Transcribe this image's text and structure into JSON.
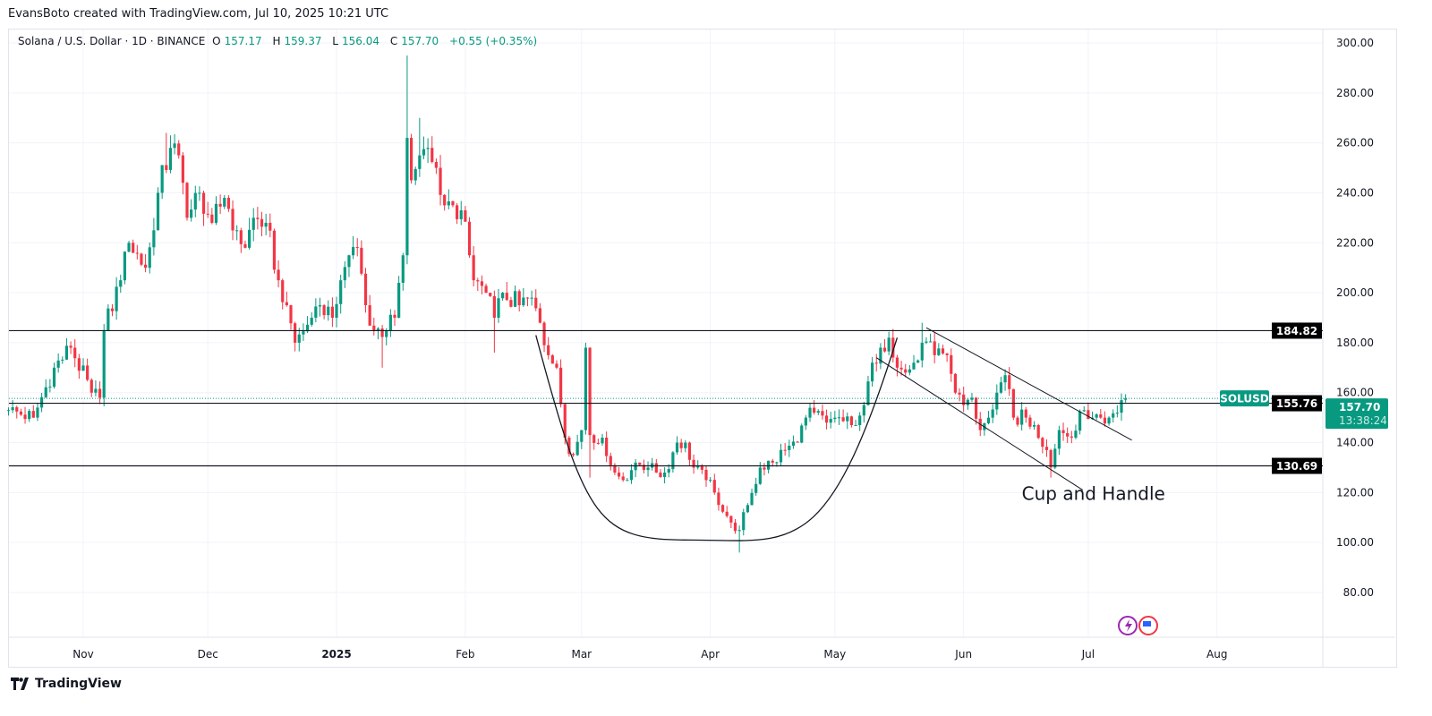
{
  "credit": "EvansBoto created with TradingView.com, Jul 10, 2025 10:21 UTC",
  "legend": {
    "symbol": "Solana / U.S. Dollar · 1D · BINANCE",
    "o_label": "O",
    "o": "157.17",
    "h_label": "H",
    "h": "159.37",
    "l_label": "L",
    "l": "156.04",
    "c_label": "C",
    "c": "157.70",
    "change": "+0.55 (+0.35%)"
  },
  "footer": {
    "brand": "TradingView"
  },
  "colors": {
    "up": "#089981",
    "down": "#f23645",
    "line": "#131722"
  },
  "chart_data": {
    "type": "candlestick",
    "title": "Solana / U.S. Dollar · 1D · BINANCE",
    "start_date": "2024-10-14",
    "ylim": [
      62,
      305
    ],
    "y_ticks": [
      "300.00",
      "280.00",
      "260.00",
      "240.00",
      "220.00",
      "200.00",
      "180.00",
      "160.00",
      "140.00",
      "120.00",
      "100.00",
      "80.00"
    ],
    "x_ticks": [
      {
        "label": "Nov",
        "day": 18
      },
      {
        "label": "Dec",
        "day": 48
      },
      {
        "label": "2025",
        "day": 79,
        "bold": true
      },
      {
        "label": "Feb",
        "day": 110
      },
      {
        "label": "Mar",
        "day": 138
      },
      {
        "label": "Apr",
        "day": 169
      },
      {
        "label": "May",
        "day": 199
      },
      {
        "label": "Jun",
        "day": 230
      },
      {
        "label": "Jul",
        "day": 260
      },
      {
        "label": "Aug",
        "day": 291
      }
    ],
    "close_anchors": [
      [
        0,
        153
      ],
      [
        6,
        150
      ],
      [
        11,
        170
      ],
      [
        15,
        178
      ],
      [
        20,
        160
      ],
      [
        22,
        158
      ],
      [
        23,
        185
      ],
      [
        27,
        205
      ],
      [
        29,
        220
      ],
      [
        33,
        210
      ],
      [
        35,
        225
      ],
      [
        36,
        240
      ],
      [
        39,
        258
      ],
      [
        41,
        255
      ],
      [
        43,
        230
      ],
      [
        46,
        240
      ],
      [
        49,
        228
      ],
      [
        52,
        238
      ],
      [
        55,
        225
      ],
      [
        57,
        218
      ],
      [
        59,
        230
      ],
      [
        62,
        228
      ],
      [
        65,
        205
      ],
      [
        67,
        195
      ],
      [
        69,
        180
      ],
      [
        73,
        190
      ],
      [
        75,
        195
      ],
      [
        78,
        190
      ],
      [
        80,
        205
      ],
      [
        82,
        215
      ],
      [
        84,
        218
      ],
      [
        86,
        195
      ],
      [
        88,
        185
      ],
      [
        91,
        185
      ],
      [
        93,
        190
      ],
      [
        95,
        215
      ],
      [
        96,
        262
      ],
      [
        97,
        245
      ],
      [
        99,
        255
      ],
      [
        101,
        258
      ],
      [
        103,
        250
      ],
      [
        105,
        235
      ],
      [
        107,
        235
      ],
      [
        109,
        233
      ],
      [
        111,
        215
      ],
      [
        112,
        205
      ],
      [
        115,
        200
      ],
      [
        117,
        190
      ],
      [
        119,
        200
      ],
      [
        123,
        195
      ],
      [
        126,
        198
      ],
      [
        128,
        188
      ],
      [
        130,
        175
      ],
      [
        132,
        170
      ],
      [
        134,
        142
      ],
      [
        136,
        135
      ],
      [
        138,
        145
      ],
      [
        139,
        178
      ],
      [
        140,
        143
      ],
      [
        143,
        142
      ],
      [
        146,
        128
      ],
      [
        148,
        125
      ],
      [
        151,
        132
      ],
      [
        154,
        130
      ],
      [
        156,
        128
      ],
      [
        158,
        128
      ],
      [
        161,
        140
      ],
      [
        163,
        140
      ],
      [
        165,
        130
      ],
      [
        168,
        125
      ],
      [
        170,
        120
      ],
      [
        174,
        108
      ],
      [
        176,
        105
      ],
      [
        178,
        115
      ],
      [
        181,
        130
      ],
      [
        184,
        132
      ],
      [
        187,
        137
      ],
      [
        190,
        140
      ],
      [
        192,
        150
      ],
      [
        194,
        152
      ],
      [
        197,
        148
      ],
      [
        199,
        150
      ],
      [
        203,
        147
      ],
      [
        206,
        155
      ],
      [
        208,
        172
      ],
      [
        210,
        178
      ],
      [
        212,
        182
      ],
      [
        214,
        170
      ],
      [
        216,
        168
      ],
      [
        218,
        172
      ],
      [
        220,
        180
      ],
      [
        223,
        175
      ],
      [
        226,
        175
      ],
      [
        228,
        160
      ],
      [
        230,
        155
      ],
      [
        232,
        158
      ],
      [
        234,
        145
      ],
      [
        236,
        150
      ],
      [
        238,
        160
      ],
      [
        240,
        167
      ],
      [
        242,
        150
      ],
      [
        245,
        150
      ],
      [
        247,
        147
      ],
      [
        250,
        137
      ],
      [
        251,
        130
      ],
      [
        253,
        145
      ],
      [
        256,
        142
      ],
      [
        259,
        153
      ],
      [
        261,
        150
      ],
      [
        263,
        150
      ],
      [
        265,
        150
      ],
      [
        267,
        152
      ],
      [
        268,
        157
      ],
      [
        269,
        157.7
      ]
    ],
    "extra_highs": [
      [
        96,
        295
      ],
      [
        38,
        264
      ],
      [
        99,
        270
      ],
      [
        139,
        180
      ],
      [
        220,
        188
      ]
    ],
    "extra_lows": [
      [
        117,
        176
      ],
      [
        90,
        170
      ],
      [
        176,
        96
      ],
      [
        251,
        126
      ],
      [
        140,
        126
      ]
    ],
    "horizontal_levels": [
      {
        "price": 184.82,
        "label": "184.82"
      },
      {
        "price": 155.76,
        "label": "155.76"
      },
      {
        "price": 130.69,
        "label": "130.69"
      }
    ],
    "last_price": {
      "symbol": "SOLUSD",
      "price": 157.7,
      "label": "157.70",
      "countdown": "13:38:24"
    },
    "cup": {
      "start": [
        127,
        183
      ],
      "bottom": [
        164,
        101
      ],
      "end": [
        214,
        182
      ]
    },
    "channel": [
      {
        "from": [
          221,
          186
        ],
        "to": [
          270.5,
          141
        ]
      },
      {
        "from": [
          209,
          174
        ],
        "to": [
          258.7,
          121
        ]
      }
    ],
    "annotation": {
      "text": "Cup and Handle",
      "day": 244,
      "price": 120
    }
  }
}
